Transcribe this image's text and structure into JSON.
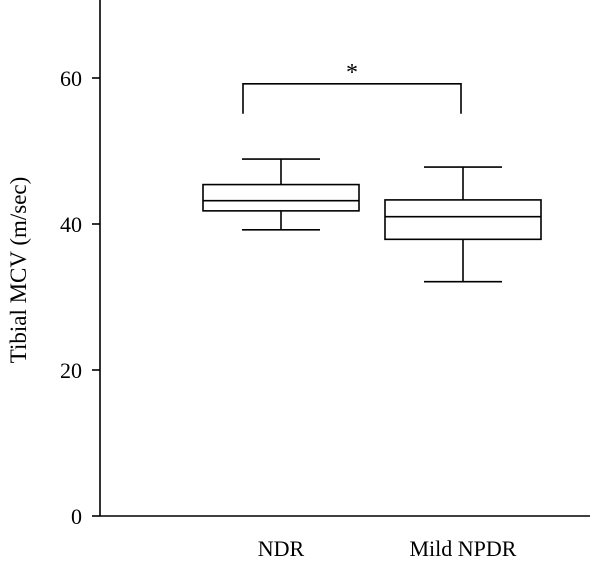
{
  "chart_data": {
    "type": "box",
    "ylabel": "Tibial MCV (m/sec)",
    "xlabel": "",
    "ylim": [
      0,
      70
    ],
    "yticks": [
      0,
      20,
      40,
      60
    ],
    "categories": [
      "NDR",
      "Mild NPDR"
    ],
    "boxes": [
      {
        "category": "NDR",
        "whisker_low": 39.2,
        "q1": 41.8,
        "median": 43.2,
        "q3": 45.4,
        "whisker_high": 48.9
      },
      {
        "category": "Mild NPDR",
        "whisker_low": 32.1,
        "q1": 37.9,
        "median": 41.0,
        "q3": 43.3,
        "whisker_high": 47.8
      }
    ],
    "annotations": [
      {
        "type": "significance-bracket",
        "from": "NDR",
        "to": "Mild NPDR",
        "y": 59.2,
        "drop_to": 55.1,
        "label": "*"
      }
    ]
  }
}
